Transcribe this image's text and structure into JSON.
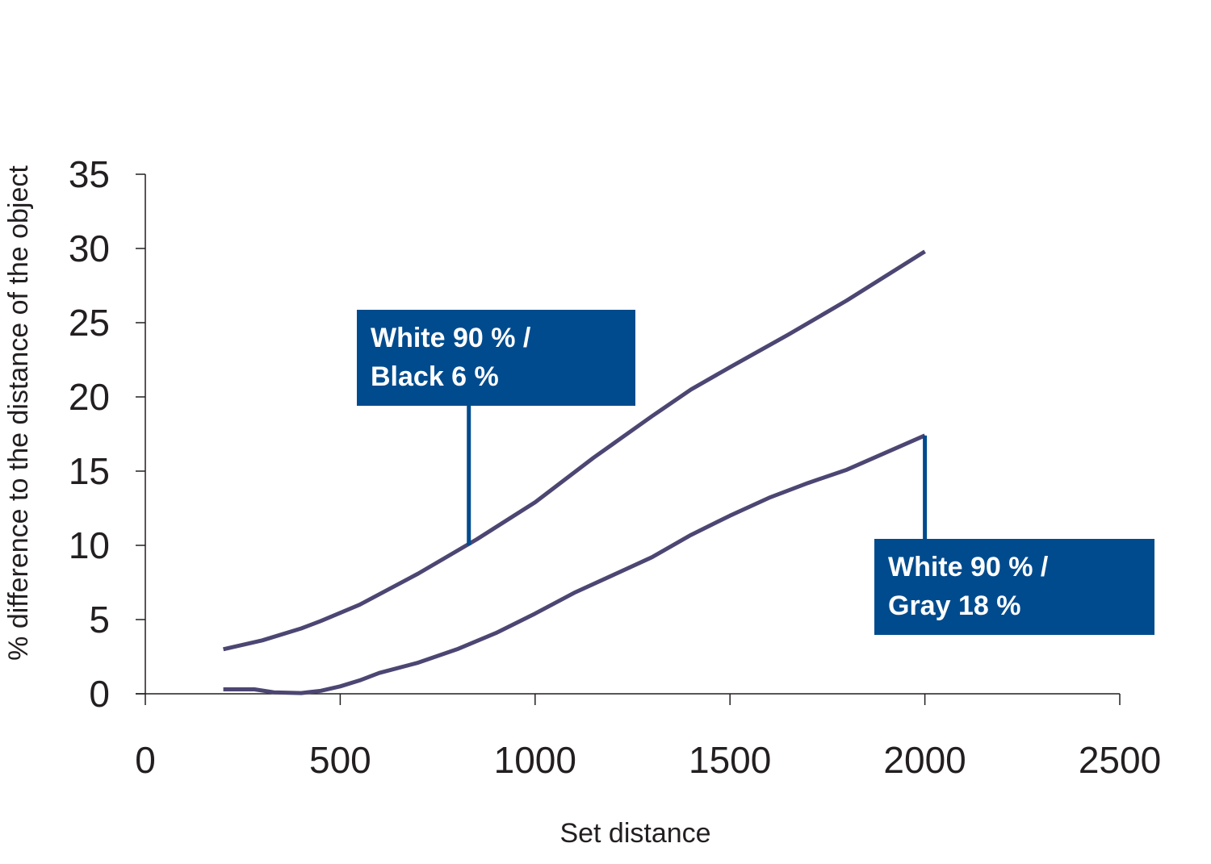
{
  "chart_data": {
    "type": "line",
    "title": "",
    "xlabel": "Set distance",
    "ylabel": "% difference to the distance of the object",
    "xlim": [
      0,
      2500
    ],
    "ylim": [
      0,
      35
    ],
    "xticks": [
      0,
      500,
      1000,
      1500,
      2000,
      2500
    ],
    "yticks": [
      0,
      5,
      10,
      15,
      20,
      25,
      30,
      35
    ],
    "grid": false,
    "line_color": "#4c4673",
    "callout_color": "#004b8d",
    "series": [
      {
        "x": [
          200,
          300,
          400,
          450,
          550,
          700,
          850,
          1000,
          1150,
          1300,
          1400,
          1500,
          1650,
          1800,
          2000
        ],
        "y": [
          3.0,
          3.6,
          4.4,
          4.9,
          6.0,
          8.1,
          10.4,
          12.9,
          15.9,
          18.7,
          20.5,
          22.0,
          24.2,
          26.5,
          29.8
        ]
      },
      {
        "x": [
          200,
          280,
          330,
          400,
          450,
          500,
          550,
          600,
          700,
          800,
          900,
          1000,
          1100,
          1200,
          1300,
          1400,
          1500,
          1600,
          1700,
          1800,
          2000
        ],
        "y": [
          0.3,
          0.3,
          0.1,
          0.05,
          0.2,
          0.5,
          0.9,
          1.4,
          2.1,
          3.0,
          4.1,
          5.4,
          6.8,
          8.0,
          9.2,
          10.7,
          12.0,
          13.2,
          14.2,
          15.1,
          17.4
        ]
      }
    ],
    "annotations": [
      {
        "line1": "White 90 % /",
        "line2": "Black 6 %",
        "leader_from": {
          "x": 830,
          "y": 19.5
        },
        "leader_to": {
          "x": 830,
          "y": 10.0
        }
      },
      {
        "line1": "White 90 % /",
        "line2": "Gray 18 %",
        "leader_from": {
          "x": 2000,
          "y": 17.4
        },
        "leader_to": {
          "x": 2000,
          "y": 10.4
        }
      }
    ]
  }
}
